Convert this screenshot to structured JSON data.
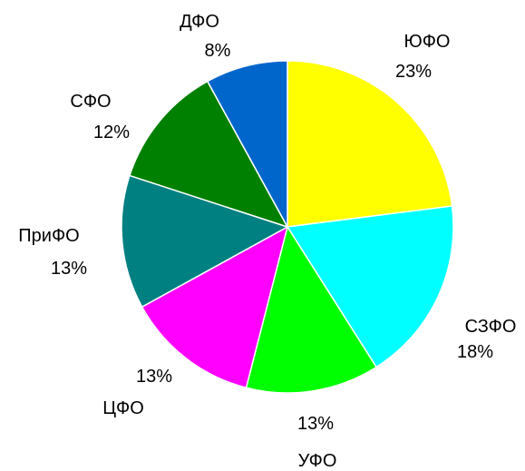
{
  "chart_data": {
    "type": "pie",
    "slices": [
      {
        "label": "ЮФО",
        "value": 23,
        "value_label": "23%",
        "color": "#FFFF00"
      },
      {
        "label": "СЗФО",
        "value": 18,
        "value_label": "18%",
        "color": "#00FFFF"
      },
      {
        "label": "УФО",
        "value": 13,
        "value_label": "13%",
        "color": "#00FF00"
      },
      {
        "label": "ЦФО",
        "value": 13,
        "value_label": "13%",
        "color": "#FF00FF"
      },
      {
        "label": "ПриФО",
        "value": 13,
        "value_label": "13%",
        "color": "#008080"
      },
      {
        "label": "СФО",
        "value": 12,
        "value_label": "12%",
        "color": "#008000"
      },
      {
        "label": "ДФО",
        "value": 8,
        "value_label": "8%",
        "color": "#0066CC"
      }
    ],
    "start": "top",
    "direction": "clockwise",
    "legend": "none"
  }
}
